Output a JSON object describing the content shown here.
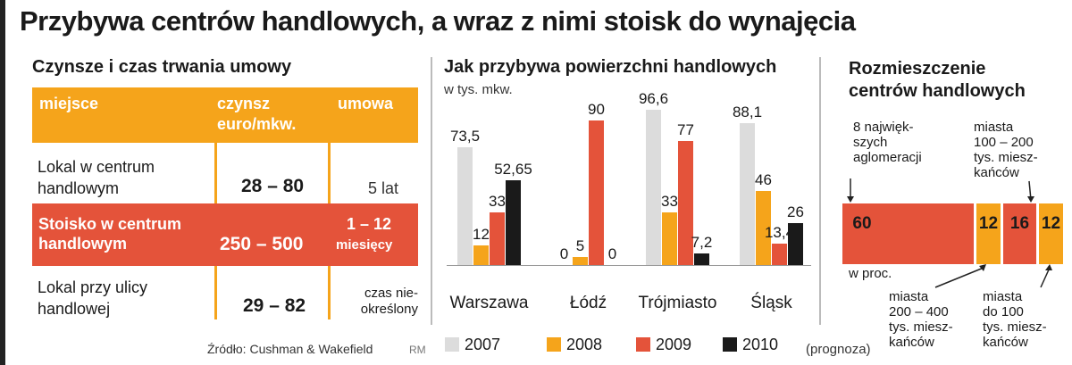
{
  "title": "Przybywa centrów handlowych, a wraz z nimi stoisk do wynajęcia",
  "table": {
    "subtitle": "Czynsze i czas trwania umowy",
    "headers": {
      "place": "miejsce",
      "rent_line1": "czynsz",
      "rent_line2": "euro/mkw.",
      "contract": "umowa"
    },
    "rows": [
      {
        "place_line1": "Lokal w centrum",
        "place_line2": "handlowym",
        "rent": "28 – 80",
        "contract": "5 lat"
      },
      {
        "place_line1": "Stoisko w centrum",
        "place_line2": "handlowym",
        "rent": "250 – 500",
        "contract_line1": "1 – 12",
        "contract_line2": "miesięcy"
      },
      {
        "place_line1": "Lokal przy ulicy",
        "place_line2": "handlowej",
        "rent": "29 – 82",
        "contract_line1": "czas nie-",
        "contract_line2": "określony"
      }
    ]
  },
  "chart_data": {
    "type": "bar",
    "title": "Jak przybywa powierzchni handlowych",
    "ylabel": "w tys. mkw.",
    "categories": [
      "Warszawa",
      "Łódź",
      "Trójmiasto",
      "Śląsk"
    ],
    "series": [
      {
        "name": "2007",
        "color": "#dcdcdc",
        "values": [
          73.5,
          0,
          96.6,
          88.1
        ],
        "labels": [
          "73,5",
          "0",
          "96,6",
          "88,1"
        ]
      },
      {
        "name": "2008",
        "color": "#f5a41b",
        "values": [
          12,
          5,
          33,
          46
        ],
        "labels": [
          "12",
          "5",
          "33",
          "46"
        ]
      },
      {
        "name": "2009",
        "color": "#e4533a",
        "values": [
          33,
          90,
          77,
          13.4
        ],
        "labels": [
          "33",
          "90",
          "77",
          "13,4"
        ]
      },
      {
        "name": "2010",
        "color": "#1a1a1a",
        "values": [
          52.65,
          0,
          7.2,
          26
        ],
        "labels": [
          "52,65",
          "0",
          "7,2",
          "26"
        ]
      }
    ],
    "legend": [
      "2007",
      "2008",
      "2009",
      "2010"
    ],
    "legend_note": "(prognoza)",
    "ylim": [
      0,
      100
    ]
  },
  "distribution": {
    "subtitle_line1": "Rozmieszczenie",
    "subtitle_line2": "centrów handlowych",
    "unit": "w proc.",
    "segments": [
      {
        "label": "60",
        "value": 60,
        "color": "#e4533a",
        "desc_lines": [
          "8 najwięk-",
          "szych",
          "aglomeracji"
        ]
      },
      {
        "label": "12",
        "value": 12,
        "color": "#f5a41b",
        "desc_lines": [
          "miasta",
          "200 – 400",
          "tys. miesz-",
          "kańców"
        ]
      },
      {
        "label": "16",
        "value": 16,
        "color": "#e4533a",
        "desc_lines": [
          "miasta",
          "100 – 200",
          "tys. miesz-",
          "kańców"
        ]
      },
      {
        "label": "12",
        "value": 12,
        "color": "#f5a41b",
        "desc_lines": [
          "miasta",
          "do 100",
          "tys. miesz-",
          "kańców"
        ]
      }
    ]
  },
  "source": "Źródło: Cushman & Wakefield",
  "credit": "RM"
}
